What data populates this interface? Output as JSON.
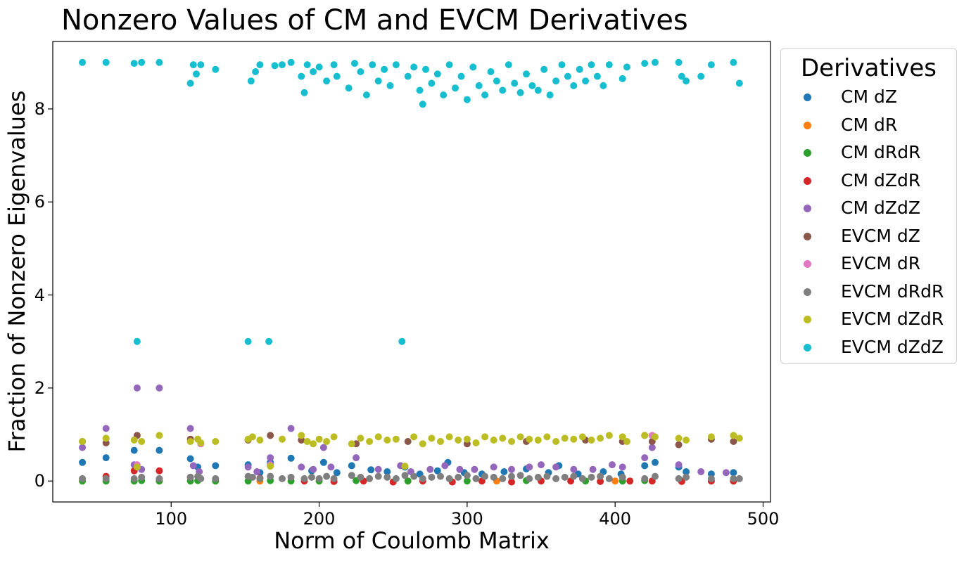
{
  "chart_data": {
    "type": "scatter",
    "title": "Nonzero Values of CM and EVCM Derivatives",
    "xlabel": "Norm of Coulomb Matrix",
    "ylabel": "Fraction of Nonzero Eigenvalues",
    "xlim": [
      20,
      505
    ],
    "ylim": [
      -0.45,
      9.45
    ],
    "xticks": [
      100,
      200,
      300,
      400,
      500
    ],
    "yticks": [
      0,
      2,
      4,
      6,
      8
    ],
    "grid": false,
    "legend": {
      "title": "Derivatives",
      "placement": "outside-right"
    },
    "series": [
      {
        "name": "CM dZ",
        "color": "#1f77b4",
        "x": [
          40,
          56,
          75,
          92,
          113,
          118,
          130,
          152,
          160,
          167,
          181,
          195,
          203,
          212,
          222,
          235,
          246,
          258,
          268,
          280,
          287,
          298,
          310,
          325,
          340,
          355,
          362,
          375,
          392,
          404,
          420,
          427,
          443,
          448,
          465,
          480
        ],
        "y": [
          0.4,
          0.5,
          0.66,
          0.66,
          0.48,
          0.3,
          0.33,
          0.35,
          0.18,
          0.4,
          0.49,
          0.22,
          0.4,
          0.18,
          0.33,
          0.24,
          0.2,
          0.3,
          0.15,
          0.22,
          0.4,
          0.18,
          0.15,
          0.2,
          0.26,
          0.18,
          0.33,
          0.15,
          0.2,
          0.15,
          0.33,
          0.4,
          0.3,
          0.2,
          0.15,
          0.18
        ]
      },
      {
        "name": "CM dR",
        "color": "#ff7f0e",
        "x": [
          40,
          56,
          75,
          92,
          130,
          160,
          200,
          260,
          320,
          400,
          480
        ],
        "y": [
          0.0,
          0.0,
          0.0,
          0.0,
          0.0,
          0.0,
          0.0,
          0.0,
          0.0,
          0.0,
          0.0
        ]
      },
      {
        "name": "CM dRdR",
        "color": "#2ca02c",
        "x": [
          40,
          56,
          75,
          80,
          92,
          113,
          118,
          130,
          152,
          167,
          181,
          200,
          225,
          260,
          300,
          340,
          380,
          405,
          420,
          445,
          465,
          480
        ],
        "y": [
          0.0,
          0.0,
          0.0,
          0.01,
          0.0,
          0.0,
          0.01,
          0.0,
          0.0,
          0.01,
          0.0,
          0.0,
          0.01,
          0.0,
          0.0,
          0.01,
          0.0,
          0.0,
          0.01,
          0.0,
          0.0,
          0.0
        ]
      },
      {
        "name": "CM dZdR",
        "color": "#d62728",
        "x": [
          56,
          75,
          92,
          113,
          160,
          190,
          210,
          230,
          250,
          270,
          290,
          310,
          330,
          350,
          370,
          390,
          410,
          425,
          445,
          465,
          480
        ],
        "y": [
          0.1,
          0.22,
          0.22,
          0.08,
          0.06,
          0.0,
          -0.01,
          0.0,
          -0.02,
          0.0,
          -0.02,
          0.0,
          -0.02,
          0.0,
          0.0,
          -0.01,
          0.0,
          0.0,
          -0.01,
          0.0,
          0.0
        ]
      },
      {
        "name": "CM dZdZ",
        "color": "#9467bd",
        "x": [
          40,
          56,
          75,
          77,
          80,
          92,
          113,
          115,
          119,
          152,
          158,
          167,
          181,
          188,
          196,
          203,
          208,
          225,
          240,
          255,
          262,
          275,
          285,
          295,
          305,
          318,
          330,
          342,
          350,
          360,
          372,
          385,
          398,
          405,
          420,
          425,
          443,
          458,
          475
        ],
        "y": [
          0.72,
          1.13,
          0.35,
          2.0,
          0.25,
          2.0,
          1.13,
          0.33,
          0.2,
          0.3,
          0.2,
          0.5,
          1.13,
          0.3,
          0.25,
          0.72,
          0.3,
          0.5,
          0.25,
          0.33,
          0.2,
          0.25,
          0.33,
          0.25,
          0.25,
          0.3,
          0.25,
          0.3,
          0.35,
          0.3,
          0.25,
          0.25,
          0.35,
          0.3,
          0.5,
          0.72,
          0.35,
          0.2,
          0.18
        ]
      },
      {
        "name": "EVCM dZ",
        "color": "#8c564b",
        "x": [
          40,
          56,
          77,
          113,
          152,
          167,
          188,
          225,
          260,
          300,
          340,
          380,
          405,
          420,
          425,
          443,
          465,
          480
        ],
        "y": [
          0.85,
          0.82,
          0.98,
          0.9,
          0.88,
          0.98,
          0.88,
          0.8,
          0.85,
          0.8,
          0.85,
          0.88,
          0.85,
          0.98,
          0.85,
          0.78,
          0.9,
          0.85
        ]
      },
      {
        "name": "EVCM dR",
        "color": "#e377c2",
        "x": [
          56,
          77,
          120,
          167,
          425
        ],
        "y": [
          0.92,
          0.35,
          0.8,
          0.35,
          0.98
        ]
      },
      {
        "name": "EVCM dRdR",
        "color": "#7f7f7f",
        "x": [
          40,
          56,
          75,
          80,
          92,
          113,
          118,
          120,
          130,
          152,
          155,
          160,
          167,
          175,
          181,
          190,
          195,
          200,
          205,
          210,
          222,
          228,
          234,
          240,
          246,
          252,
          258,
          264,
          270,
          276,
          282,
          288,
          294,
          300,
          306,
          312,
          318,
          324,
          330,
          336,
          342,
          348,
          354,
          360,
          366,
          372,
          378,
          384,
          390,
          396,
          405,
          420,
          427,
          443,
          448,
          465,
          480,
          484
        ],
        "y": [
          0.05,
          0.05,
          0.05,
          0.08,
          0.05,
          0.08,
          0.1,
          0.05,
          0.05,
          0.1,
          0.08,
          0.05,
          0.1,
          0.05,
          0.08,
          0.05,
          0.08,
          0.05,
          0.1,
          0.05,
          0.12,
          0.08,
          0.05,
          0.1,
          0.08,
          0.05,
          0.12,
          0.1,
          0.05,
          0.08,
          0.1,
          0.05,
          0.08,
          0.12,
          0.05,
          0.1,
          0.08,
          0.05,
          0.1,
          0.12,
          0.05,
          0.08,
          0.1,
          0.05,
          0.08,
          0.1,
          0.05,
          0.08,
          0.1,
          0.05,
          0.08,
          0.05,
          0.1,
          0.05,
          0.08,
          0.05,
          0.05,
          0.05
        ]
      },
      {
        "name": "EVCM dZdR",
        "color": "#bcbd22",
        "x": [
          40,
          56,
          75,
          77,
          80,
          92,
          113,
          118,
          120,
          130,
          152,
          155,
          160,
          167,
          175,
          188,
          192,
          196,
          200,
          205,
          210,
          222,
          228,
          234,
          240,
          246,
          252,
          258,
          264,
          270,
          276,
          282,
          288,
          294,
          300,
          306,
          312,
          318,
          324,
          330,
          336,
          342,
          348,
          354,
          360,
          366,
          372,
          378,
          384,
          390,
          396,
          405,
          408,
          420,
          427,
          443,
          448,
          465,
          480,
          484
        ],
        "y": [
          0.85,
          0.92,
          0.88,
          0.3,
          0.85,
          0.98,
          0.85,
          0.9,
          0.82,
          0.85,
          0.9,
          0.95,
          0.88,
          0.32,
          0.9,
          0.98,
          0.85,
          0.8,
          0.9,
          0.85,
          0.95,
          0.8,
          0.92,
          0.85,
          0.95,
          0.88,
          0.9,
          0.32,
          0.95,
          0.8,
          0.92,
          0.85,
          0.95,
          0.88,
          0.9,
          0.82,
          0.95,
          0.88,
          0.92,
          0.85,
          0.95,
          0.9,
          0.88,
          0.95,
          0.85,
          0.92,
          0.9,
          0.95,
          0.88,
          0.92,
          0.98,
          0.95,
          0.85,
          0.98,
          0.95,
          0.92,
          0.88,
          0.95,
          0.98,
          0.92
        ]
      },
      {
        "name": "EVCM dZdZ",
        "color": "#17becf",
        "x": [
          40,
          56,
          75,
          77,
          80,
          92,
          113,
          115,
          117,
          120,
          130,
          152,
          154,
          157,
          160,
          166,
          170,
          175,
          181,
          188,
          190,
          192,
          196,
          200,
          205,
          210,
          212,
          220,
          224,
          228,
          232,
          236,
          240,
          244,
          248,
          252,
          256,
          260,
          264,
          268,
          270,
          272,
          276,
          280,
          284,
          288,
          292,
          296,
          300,
          304,
          308,
          312,
          316,
          320,
          324,
          328,
          332,
          336,
          340,
          344,
          348,
          352,
          356,
          360,
          364,
          368,
          372,
          376,
          380,
          384,
          388,
          392,
          396,
          405,
          408,
          420,
          427,
          443,
          445,
          448,
          458,
          465,
          480,
          484
        ],
        "y": [
          9.0,
          9.0,
          8.98,
          3.0,
          9.0,
          9.0,
          8.55,
          8.95,
          8.75,
          8.95,
          8.85,
          3.0,
          8.6,
          8.8,
          8.95,
          3.0,
          8.93,
          8.95,
          9.0,
          8.7,
          8.35,
          8.95,
          8.8,
          8.9,
          8.6,
          8.95,
          8.7,
          8.45,
          8.98,
          8.8,
          8.3,
          8.95,
          8.6,
          8.85,
          8.5,
          8.95,
          3.0,
          8.7,
          8.9,
          8.4,
          8.1,
          8.85,
          8.55,
          8.75,
          8.3,
          8.95,
          8.45,
          8.7,
          8.2,
          8.9,
          8.5,
          8.3,
          8.8,
          8.6,
          8.4,
          8.95,
          8.55,
          8.35,
          8.75,
          8.5,
          8.4,
          8.85,
          8.3,
          8.6,
          8.95,
          8.7,
          8.5,
          8.85,
          8.6,
          8.95,
          8.7,
          8.5,
          8.95,
          8.65,
          8.9,
          8.98,
          9.0,
          9.0,
          8.7,
          8.6,
          8.7,
          8.95,
          9.0,
          8.55
        ]
      }
    ]
  }
}
